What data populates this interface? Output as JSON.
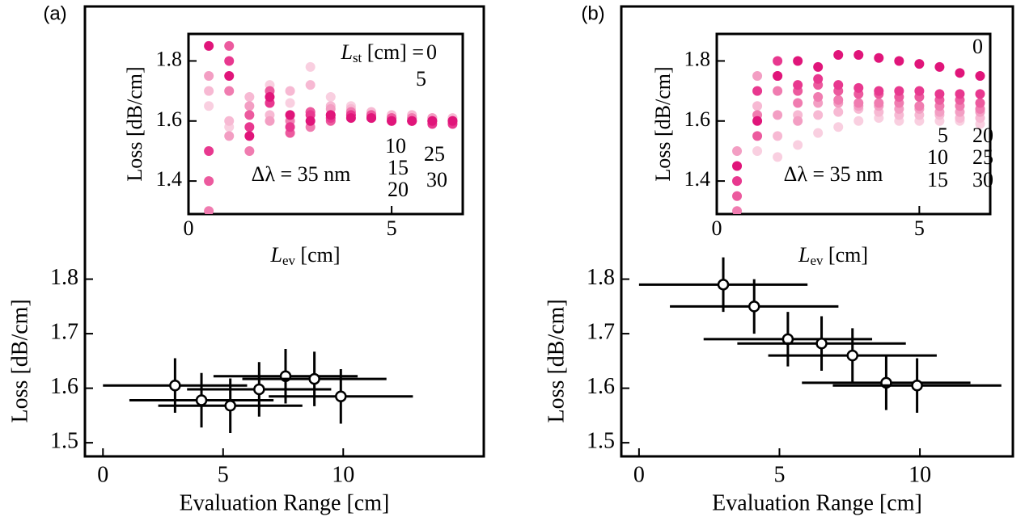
{
  "chart_data": [
    {
      "type": "errorbar",
      "panel_label": "(a)",
      "xlabel": "Evaluation Range [cm]",
      "ylabel": "Loss [dB/cm]",
      "x": [
        3,
        4.1,
        5.3,
        6.5,
        7.6,
        8.8,
        9.9
      ],
      "values": [
        1.605,
        1.578,
        1.568,
        1.598,
        1.622,
        1.617,
        1.585
      ],
      "xerr": [
        3,
        3,
        3,
        3,
        3,
        3,
        3
      ],
      "yerr": [
        0.05,
        0.05,
        0.05,
        0.05,
        0.05,
        0.05,
        0.05
      ],
      "xlim": [
        -0.75,
        15.85
      ],
      "ylim": [
        1.475,
        2.3
      ],
      "xticks": [
        0,
        5,
        10
      ],
      "yticks": [
        1.5,
        1.6,
        1.7,
        1.8
      ]
    },
    {
      "type": "scatter",
      "xlabel": [
        "L",
        "ev",
        " [cm]"
      ],
      "ylabel": "Loss [dB/cm]",
      "legend_title": [
        "L",
        "st",
        " [cm] = "
      ],
      "annotation": "Δλ = 35 nm",
      "x": [
        0.5,
        1,
        1.5,
        2,
        2.5,
        3,
        3.5,
        4,
        4.5,
        5,
        5.5,
        6,
        6.5
      ],
      "series": [
        {
          "name": "0",
          "color": "#e0157a",
          "values": [
            1.85,
            1.75,
            1.55,
            1.68,
            1.62,
            1.6,
            1.62,
            1.61,
            1.61,
            1.6,
            1.6,
            1.6,
            1.6
          ]
        },
        {
          "name": "5",
          "color": "#e8388f",
          "values": [
            1.5,
            1.8,
            1.58,
            1.66,
            1.58,
            1.62,
            1.61,
            1.62,
            1.61,
            1.6,
            1.6,
            1.59,
            1.59
          ]
        },
        {
          "name": "10",
          "color": "#ec5a9e",
          "values": [
            1.4,
            1.85,
            1.62,
            1.7,
            1.56,
            1.63,
            1.6,
            1.62,
            1.62,
            1.61,
            1.6,
            1.6,
            1.6
          ]
        },
        {
          "name": "15",
          "color": "#f07cb0",
          "values": [
            1.3,
            1.7,
            1.5,
            1.66,
            1.6,
            1.58,
            1.62,
            1.63,
            1.62,
            1.61,
            1.61,
            1.6,
            1.6
          ]
        },
        {
          "name": "20",
          "color": "#f39ec3",
          "values": [
            1.75,
            1.55,
            1.65,
            1.6,
            1.62,
            1.63,
            1.64,
            1.63,
            1.62,
            1.61,
            1.61,
            1.61,
            1.6
          ]
        },
        {
          "name": "25",
          "color": "#f7b9d3",
          "values": [
            1.7,
            1.6,
            1.68,
            1.62,
            1.7,
            1.72,
            1.65,
            1.64,
            1.63,
            1.62,
            1.62,
            1.61,
            1.61
          ]
        },
        {
          "name": "30",
          "color": "#f9cfe0",
          "values": [
            1.65,
            1.58,
            1.62,
            1.72,
            1.66,
            1.78,
            1.68,
            1.65,
            1.63,
            1.62,
            1.62,
            1.61,
            1.6
          ]
        }
      ],
      "xlim": [
        0,
        6.75
      ],
      "ylim": [
        1.29,
        1.89
      ],
      "xticks": [
        0,
        5
      ],
      "yticks": [
        1.4,
        1.6,
        1.8
      ]
    },
    {
      "type": "errorbar",
      "panel_label": "(b)",
      "xlabel": "Evaluation Range [cm]",
      "ylabel": "Loss [dB/cm]",
      "x": [
        3,
        4.1,
        5.3,
        6.5,
        7.6,
        8.8,
        9.9
      ],
      "values": [
        1.79,
        1.75,
        1.69,
        1.682,
        1.66,
        1.61,
        1.605
      ],
      "xerr": [
        3,
        3,
        3,
        3,
        3,
        3,
        3
      ],
      "yerr": [
        0.05,
        0.05,
        0.05,
        0.05,
        0.05,
        0.05,
        0.05
      ],
      "xlim": [
        -0.63,
        13.31
      ],
      "ylim": [
        1.475,
        2.3
      ],
      "xticks": [
        0,
        5,
        10
      ],
      "yticks": [
        1.5,
        1.6,
        1.7,
        1.8
      ]
    },
    {
      "type": "scatter",
      "xlabel": [
        "L",
        "ev",
        " [cm]"
      ],
      "ylabel": "Loss [dB/cm]",
      "annotation": "Δλ = 35 nm",
      "x": [
        0.5,
        1,
        1.5,
        2,
        2.5,
        3,
        3.5,
        4,
        4.5,
        5,
        5.5,
        6,
        6.5
      ],
      "series": [
        {
          "name": "0",
          "color": "#e0157a",
          "values": [
            1.45,
            1.6,
            1.75,
            1.8,
            1.78,
            1.82,
            1.82,
            1.81,
            1.8,
            1.79,
            1.78,
            1.76,
            1.75
          ]
        },
        {
          "name": "5",
          "color": "#e8388f",
          "values": [
            1.4,
            1.7,
            1.8,
            1.72,
            1.74,
            1.72,
            1.71,
            1.7,
            1.7,
            1.7,
            1.69,
            1.69,
            1.69
          ]
        },
        {
          "name": "10",
          "color": "#ec5a9e",
          "values": [
            1.35,
            1.55,
            1.75,
            1.7,
            1.72,
            1.7,
            1.69,
            1.69,
            1.68,
            1.68,
            1.67,
            1.67,
            1.66
          ]
        },
        {
          "name": "15",
          "color": "#f07cb0",
          "values": [
            1.3,
            1.62,
            1.7,
            1.66,
            1.68,
            1.67,
            1.66,
            1.66,
            1.66,
            1.65,
            1.65,
            1.65,
            1.64
          ]
        },
        {
          "name": "20",
          "color": "#f39ec3",
          "values": [
            1.5,
            1.75,
            1.62,
            1.6,
            1.66,
            1.66,
            1.65,
            1.65,
            1.64,
            1.64,
            1.63,
            1.63,
            1.63
          ]
        },
        {
          "name": "25",
          "color": "#f7b9d3",
          "values": [
            1.45,
            1.65,
            1.55,
            1.62,
            1.62,
            1.63,
            1.64,
            1.63,
            1.62,
            1.62,
            1.62,
            1.61,
            1.61
          ]
        },
        {
          "name": "30",
          "color": "#f9cfe0",
          "values": [
            1.4,
            1.5,
            1.48,
            1.52,
            1.56,
            1.58,
            1.6,
            1.61,
            1.6,
            1.6,
            1.6,
            1.6,
            1.59
          ]
        }
      ],
      "xlim": [
        0,
        6.75
      ],
      "ylim": [
        1.29,
        1.89
      ],
      "xticks": [
        0,
        5
      ],
      "yticks": [
        1.4,
        1.6,
        1.8
      ]
    }
  ]
}
